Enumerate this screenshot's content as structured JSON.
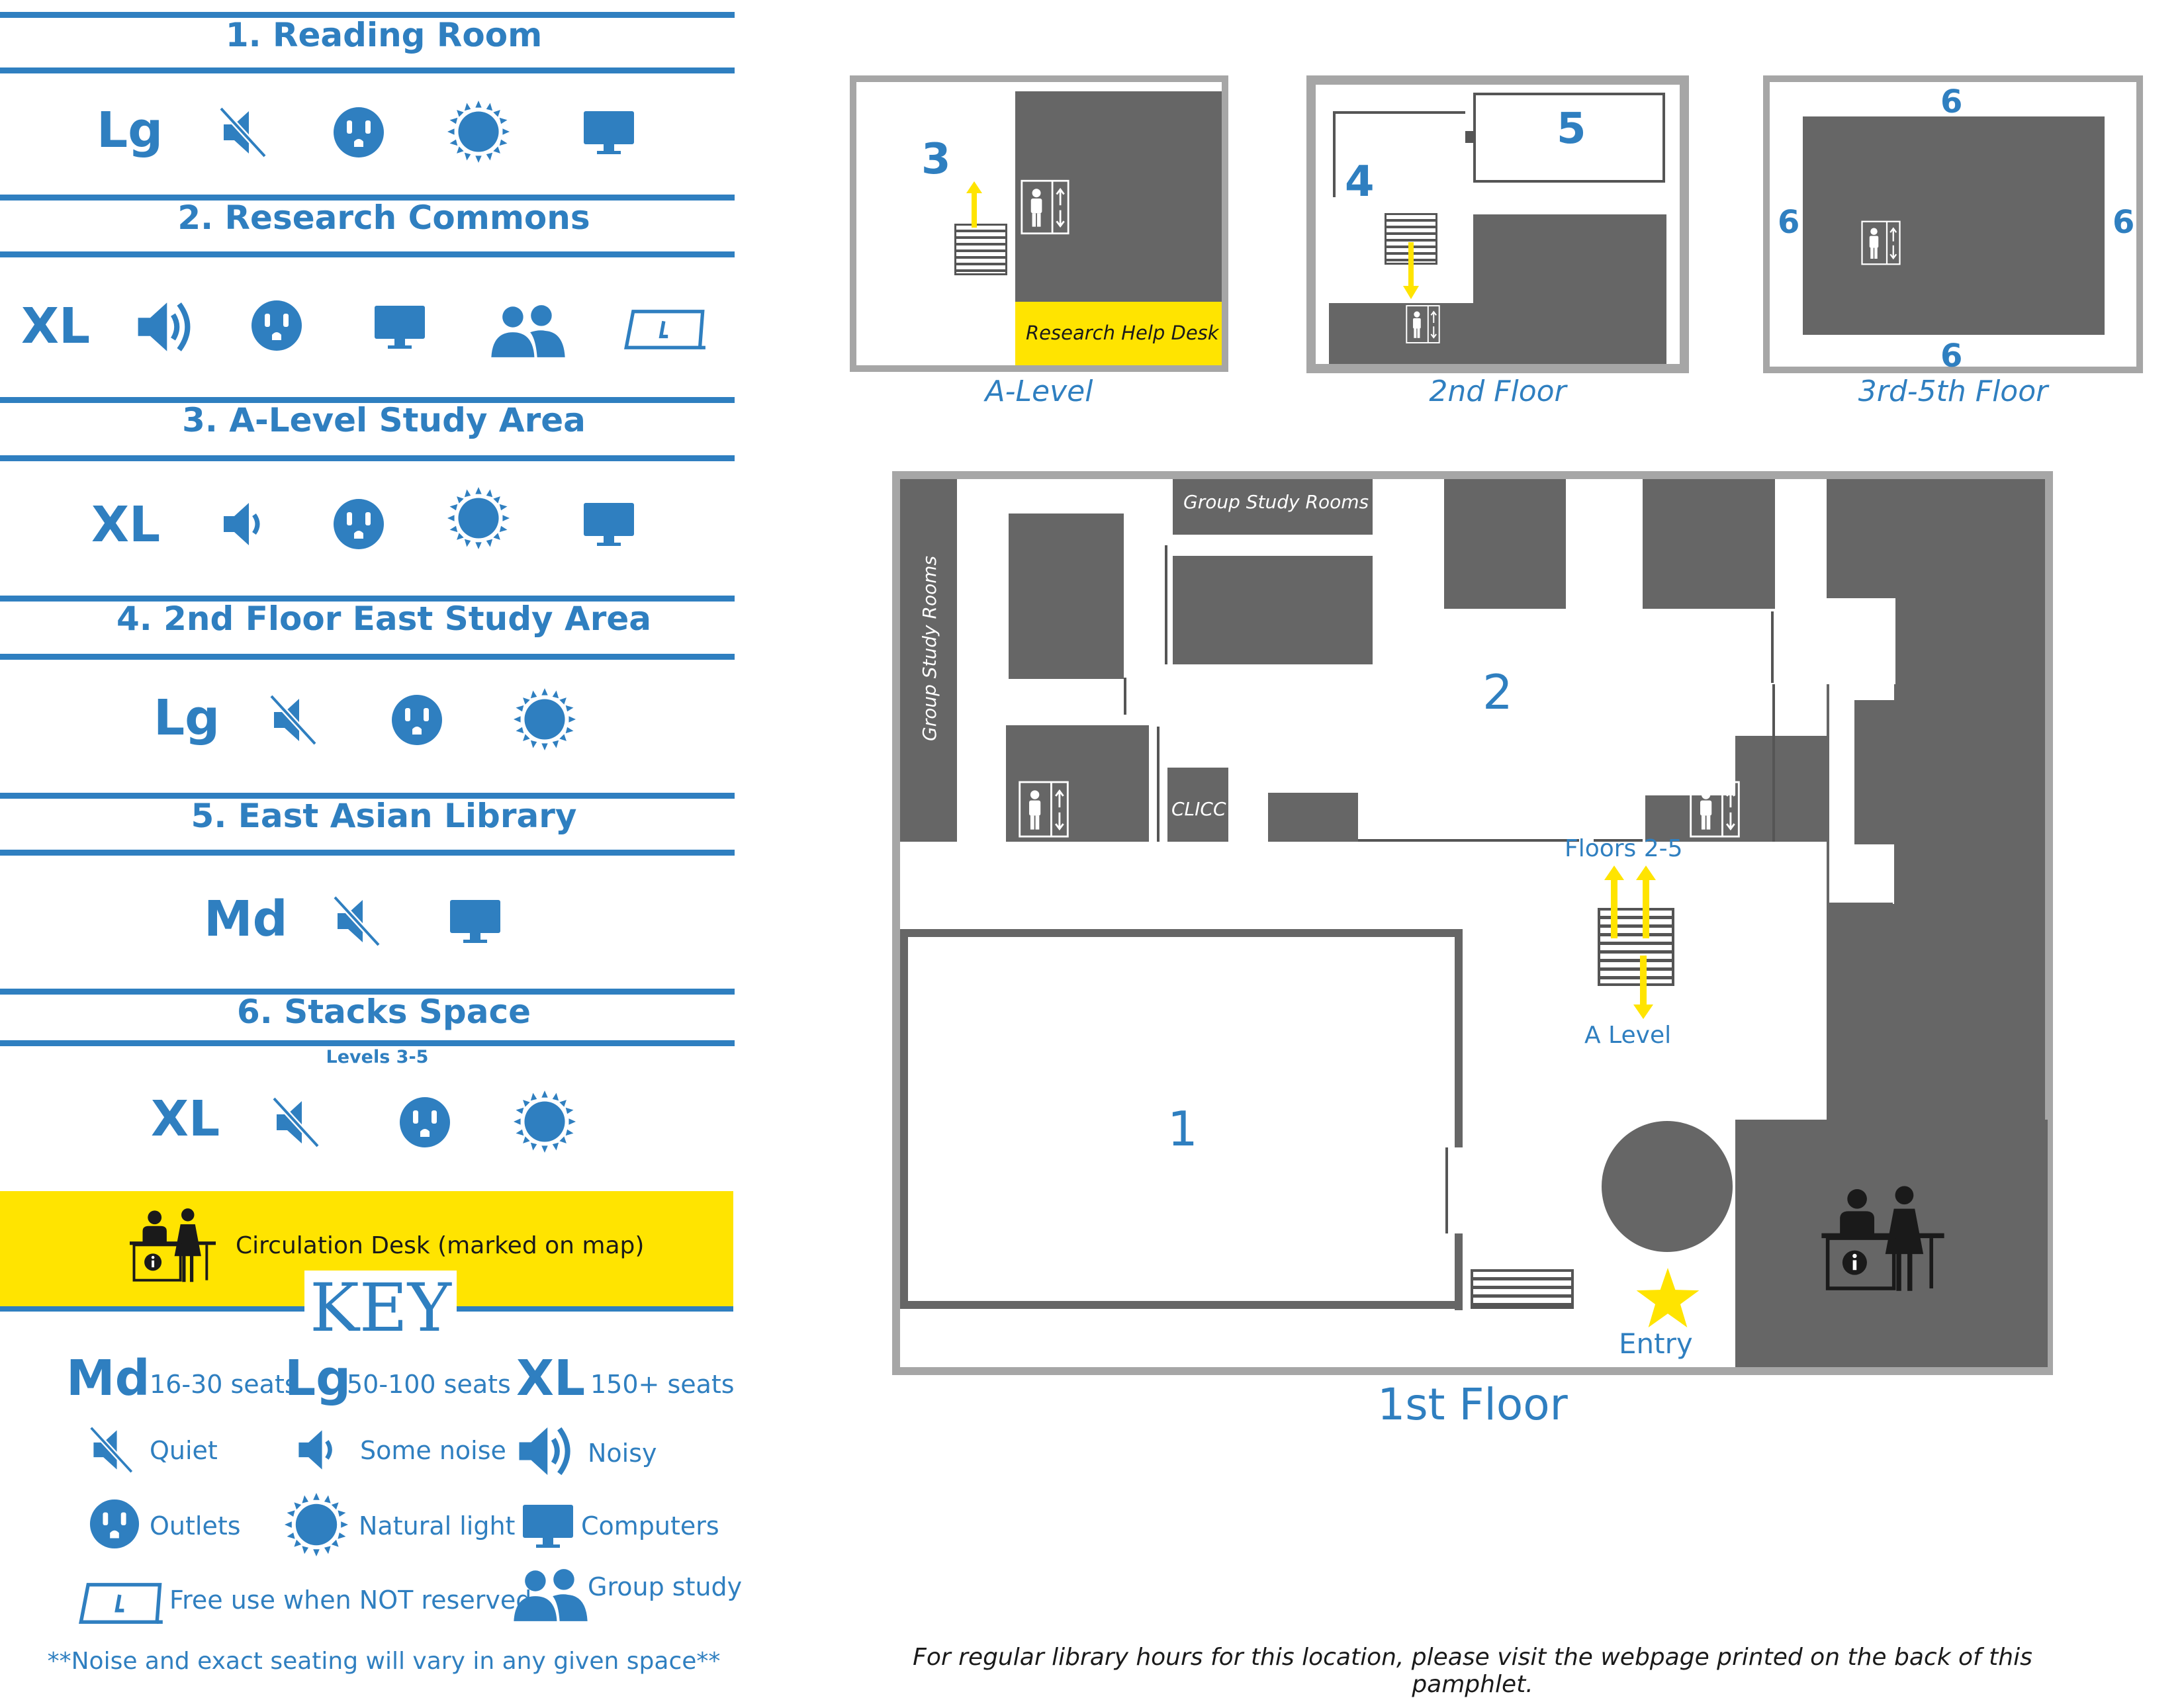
{
  "sections": [
    {
      "title": "1. Reading Room",
      "size": "Lg"
    },
    {
      "title": "2. Research Commons",
      "size": "XL"
    },
    {
      "title": "3. A-Level Study Area",
      "size": "XL"
    },
    {
      "title": "4. 2nd Floor East Study Area",
      "size": "Lg"
    },
    {
      "title": "5. East Asian Library",
      "size": "Md"
    },
    {
      "title": "6. Stacks Space",
      "subtitle": "Levels 3-5",
      "size": "XL"
    }
  ],
  "circulation": {
    "label": "Circulation Desk (marked on map)"
  },
  "key": {
    "title": "KEY",
    "sizes": [
      {
        "code": "Md",
        "desc": "16-30 seats"
      },
      {
        "code": "Lg",
        "desc": "50-100 seats"
      },
      {
        "code": "XL",
        "desc": "150+ seats"
      }
    ],
    "quiet": "Quiet",
    "some_noise": "Some noise",
    "noisy": "Noisy",
    "outlets": "Outlets",
    "natural_light": "Natural light",
    "computers": "Computers",
    "free_use": "Free use when NOT reserved",
    "group_study": "Group study",
    "note": "**Noise and exact seating will vary in any given space**"
  },
  "small_maps": {
    "a_level": {
      "caption": "A-Level",
      "area": "3",
      "desk": "Research Help Desk"
    },
    "second": {
      "caption": "2nd Floor",
      "area_a": "4",
      "area_b": "5"
    },
    "third": {
      "caption": "3rd-5th Floor",
      "area": "6"
    }
  },
  "main_map": {
    "caption": "1st Floor",
    "group_rooms_top": "Group Study Rooms",
    "group_rooms_side": "Group Study Rooms",
    "clicc": "CLICC",
    "area1": "1",
    "area2": "2",
    "floors": "Floors 2-5",
    "a_level": "A Level",
    "entry": "Entry"
  },
  "footer": "For regular library hours for this location, please visit the webpage printed on the back of this pamphlet.",
  "colors": {
    "blue": "#2f7fc0",
    "yellow": "#ffe400",
    "gray": "#666666",
    "border": "#a6a6a6"
  }
}
